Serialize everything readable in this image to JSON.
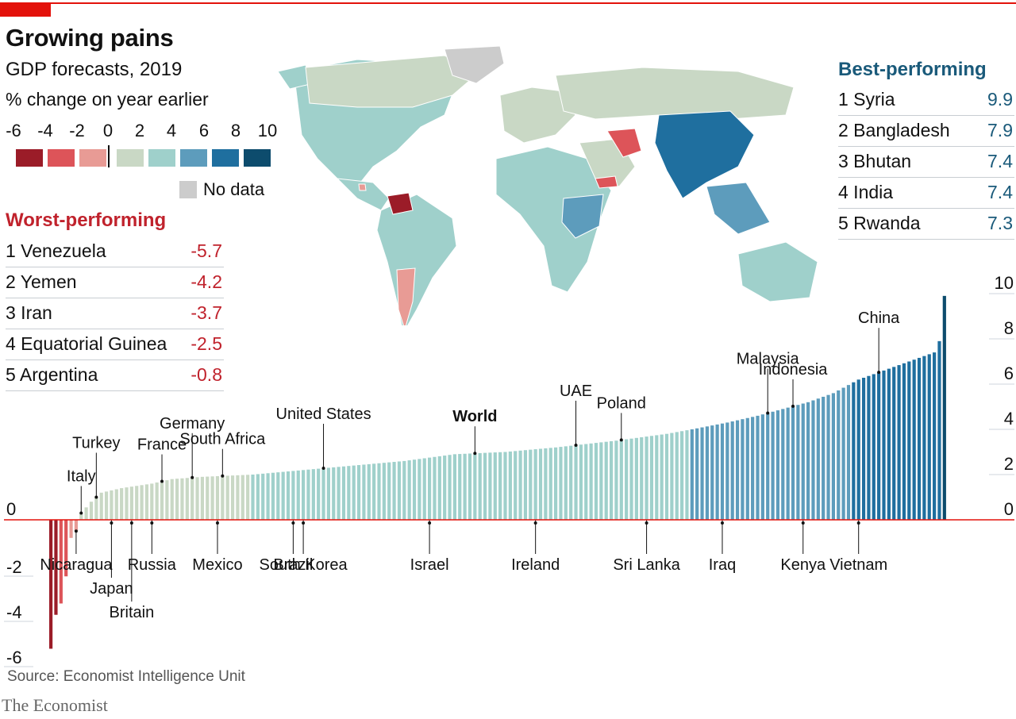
{
  "header": {
    "title": "Growing pains",
    "subtitle": "GDP forecasts, 2019",
    "unit": "% change on year earlier"
  },
  "colors": {
    "accent": "#e3120b",
    "bins": [
      "#9b1c28",
      "#dd5459",
      "#e89b95",
      "#c9d8c5",
      "#9fd0cb",
      "#5d9cbc",
      "#1f6f9f",
      "#0d4c6d"
    ],
    "nodata": "#cccccc",
    "worst_text": "#c0222c",
    "best_text": "#1a5a7a"
  },
  "legend": {
    "ticks": [
      "-6",
      "-4",
      "-2",
      "0",
      "2",
      "4",
      "6",
      "8",
      "10"
    ],
    "nodata_label": "No data"
  },
  "worst": {
    "heading": "Worst-performing",
    "rows": [
      {
        "name": "1 Venezuela",
        "value": "-5.7"
      },
      {
        "name": "2 Yemen",
        "value": "-4.2"
      },
      {
        "name": "3 Iran",
        "value": "-3.7"
      },
      {
        "name": "4 Equatorial Guinea",
        "value": "-2.5"
      },
      {
        "name": "5 Argentina",
        "value": "-0.8"
      }
    ]
  },
  "best": {
    "heading": "Best-performing",
    "rows": [
      {
        "name": "1 Syria",
        "value": "9.9"
      },
      {
        "name": "2 Bangladesh",
        "value": "7.9"
      },
      {
        "name": "3 Bhutan",
        "value": "7.4"
      },
      {
        "name": "4 India",
        "value": "7.4"
      },
      {
        "name": "5 Rwanda",
        "value": "7.3"
      }
    ]
  },
  "chart_data": {
    "type": "bar",
    "title": "Growing pains",
    "subtitle": "GDP forecasts, 2019",
    "ylabel": "% change on year earlier",
    "ylim": [
      -6,
      10
    ],
    "left_ticks": [
      "0",
      "-2",
      "-4",
      "-6"
    ],
    "left_tick_values": [
      0,
      -2,
      -4,
      -6
    ],
    "right_ticks": [
      "10",
      "8",
      "6",
      "4",
      "2",
      "0"
    ],
    "right_tick_values": [
      10,
      8,
      6,
      4,
      2,
      0
    ],
    "n_bars": 178,
    "curve": [
      [
        0,
        -5.7
      ],
      [
        1,
        -4.2
      ],
      [
        2,
        -3.7
      ],
      [
        3,
        -2.5
      ],
      [
        4,
        -0.8
      ],
      [
        5,
        -0.5
      ],
      [
        6,
        0.3
      ],
      [
        8,
        0.8
      ],
      [
        10,
        1.2
      ],
      [
        14,
        1.4
      ],
      [
        20,
        1.6
      ],
      [
        24,
        1.8
      ],
      [
        30,
        1.9
      ],
      [
        40,
        2.0
      ],
      [
        50,
        2.2
      ],
      [
        60,
        2.4
      ],
      [
        70,
        2.6
      ],
      [
        80,
        2.9
      ],
      [
        90,
        3.0
      ],
      [
        100,
        3.2
      ],
      [
        112,
        3.5
      ],
      [
        122,
        3.8
      ],
      [
        127,
        4.0
      ],
      [
        134,
        4.3
      ],
      [
        140,
        4.6
      ],
      [
        145,
        4.9
      ],
      [
        150,
        5.2
      ],
      [
        155,
        5.6
      ],
      [
        160,
        6.2
      ],
      [
        165,
        6.6
      ],
      [
        170,
        7.0
      ],
      [
        175,
        7.4
      ],
      [
        176,
        7.9
      ],
      [
        177,
        9.9
      ]
    ],
    "labels_above": [
      {
        "name": "Italy",
        "index": 6
      },
      {
        "name": "Turkey",
        "index": 9
      },
      {
        "name": "France",
        "index": 22
      },
      {
        "name": "Germany",
        "index": 28
      },
      {
        "name": "South Africa",
        "index": 34
      },
      {
        "name": "United States",
        "index": 54
      },
      {
        "name": "World",
        "index": 84,
        "bold": true
      },
      {
        "name": "UAE",
        "index": 104
      },
      {
        "name": "Poland",
        "index": 113
      },
      {
        "name": "Malaysia",
        "index": 142
      },
      {
        "name": "Indonesia",
        "index": 147
      },
      {
        "name": "China",
        "index": 164
      }
    ],
    "labels_below": [
      {
        "name": "Nicaragua",
        "index": 5
      },
      {
        "name": "Japan",
        "index": 12
      },
      {
        "name": "Britain",
        "index": 16
      },
      {
        "name": "Russia",
        "index": 20
      },
      {
        "name": "Mexico",
        "index": 33
      },
      {
        "name": "Brazil",
        "index": 48
      },
      {
        "name": "South Korea",
        "index": 50
      },
      {
        "name": "Israel",
        "index": 75
      },
      {
        "name": "Ireland",
        "index": 96
      },
      {
        "name": "Sri Lanka",
        "index": 118
      },
      {
        "name": "Iraq",
        "index": 133
      },
      {
        "name": "Kenya",
        "index": 149
      },
      {
        "name": "Vietnam",
        "index": 160
      }
    ]
  },
  "footer": {
    "source": "Source: Economist Intelligence Unit",
    "brand": "The Economist"
  }
}
